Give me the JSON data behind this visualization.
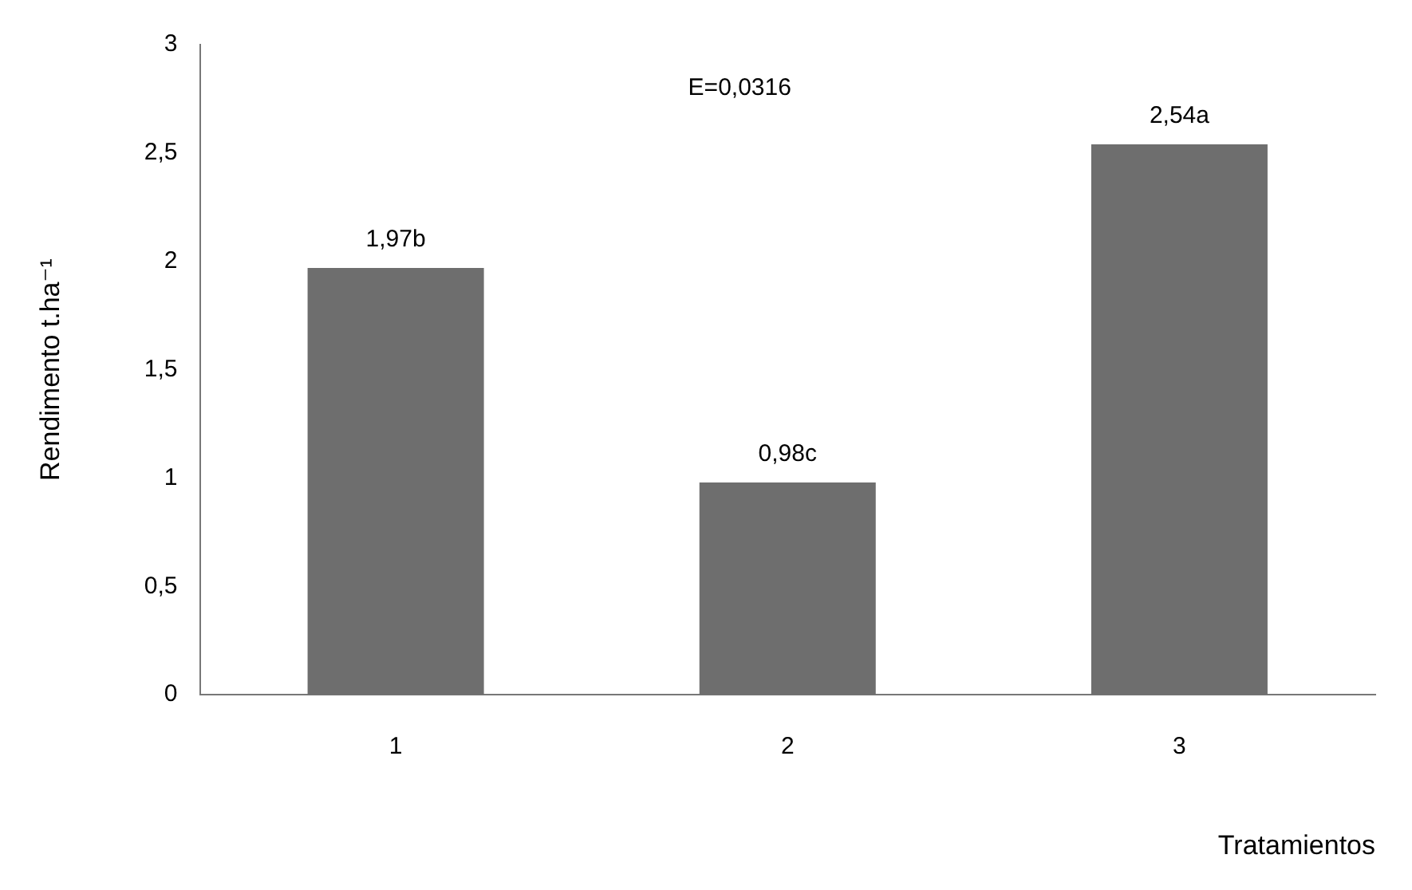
{
  "chart_data": {
    "type": "bar",
    "xlabel": "Tratamientos",
    "ylabel": "Rendimento t.ha⁻¹",
    "categories": [
      "1",
      "2",
      "3"
    ],
    "values": [
      1.97,
      0.98,
      2.54
    ],
    "color": "#6e6e6e",
    "value_labels": [
      "1,97b",
      "0,98c",
      "2,54a"
    ],
    "annotations": [
      "E=0,0316"
    ],
    "ylim": [
      0,
      3
    ],
    "yticks": [
      0,
      {
        "value": 0.5,
        "label": "0,5"
      },
      1,
      {
        "value": 1.5,
        "label": "1,5"
      },
      2,
      {
        "value": 2.5,
        "label": "2,5"
      },
      3
    ],
    "grid": false,
    "legend": false
  }
}
